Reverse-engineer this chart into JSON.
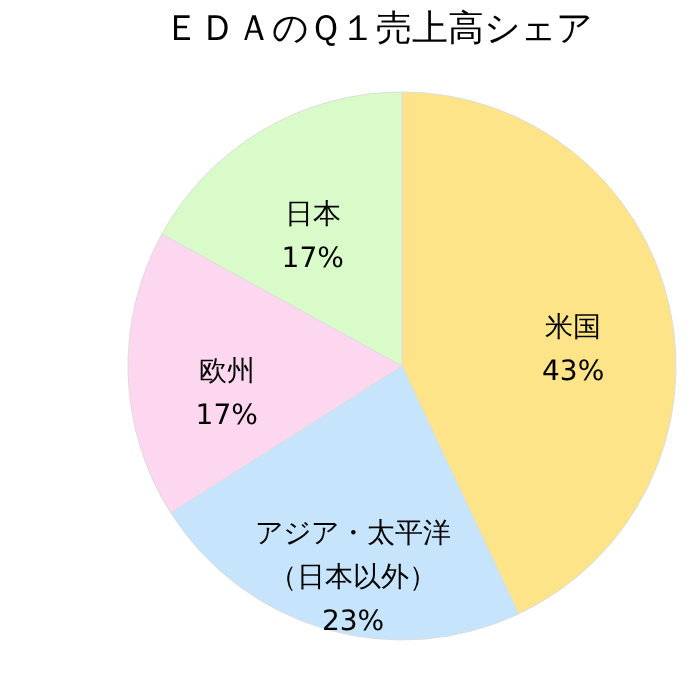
{
  "chart_data": {
    "type": "pie",
    "title": "ＥＤＡのＱ１売上高シェア",
    "categories": [
      "米国",
      "アジア・太平洋（日本以外）",
      "欧州",
      "日本"
    ],
    "values": [
      43,
      23,
      17,
      17
    ],
    "colors": [
      "#fde488",
      "#c6e4fb",
      "#fdd6ef",
      "#d9fbc9"
    ],
    "value_labels": [
      "43%",
      "23%",
      "17%",
      "17%"
    ]
  }
}
